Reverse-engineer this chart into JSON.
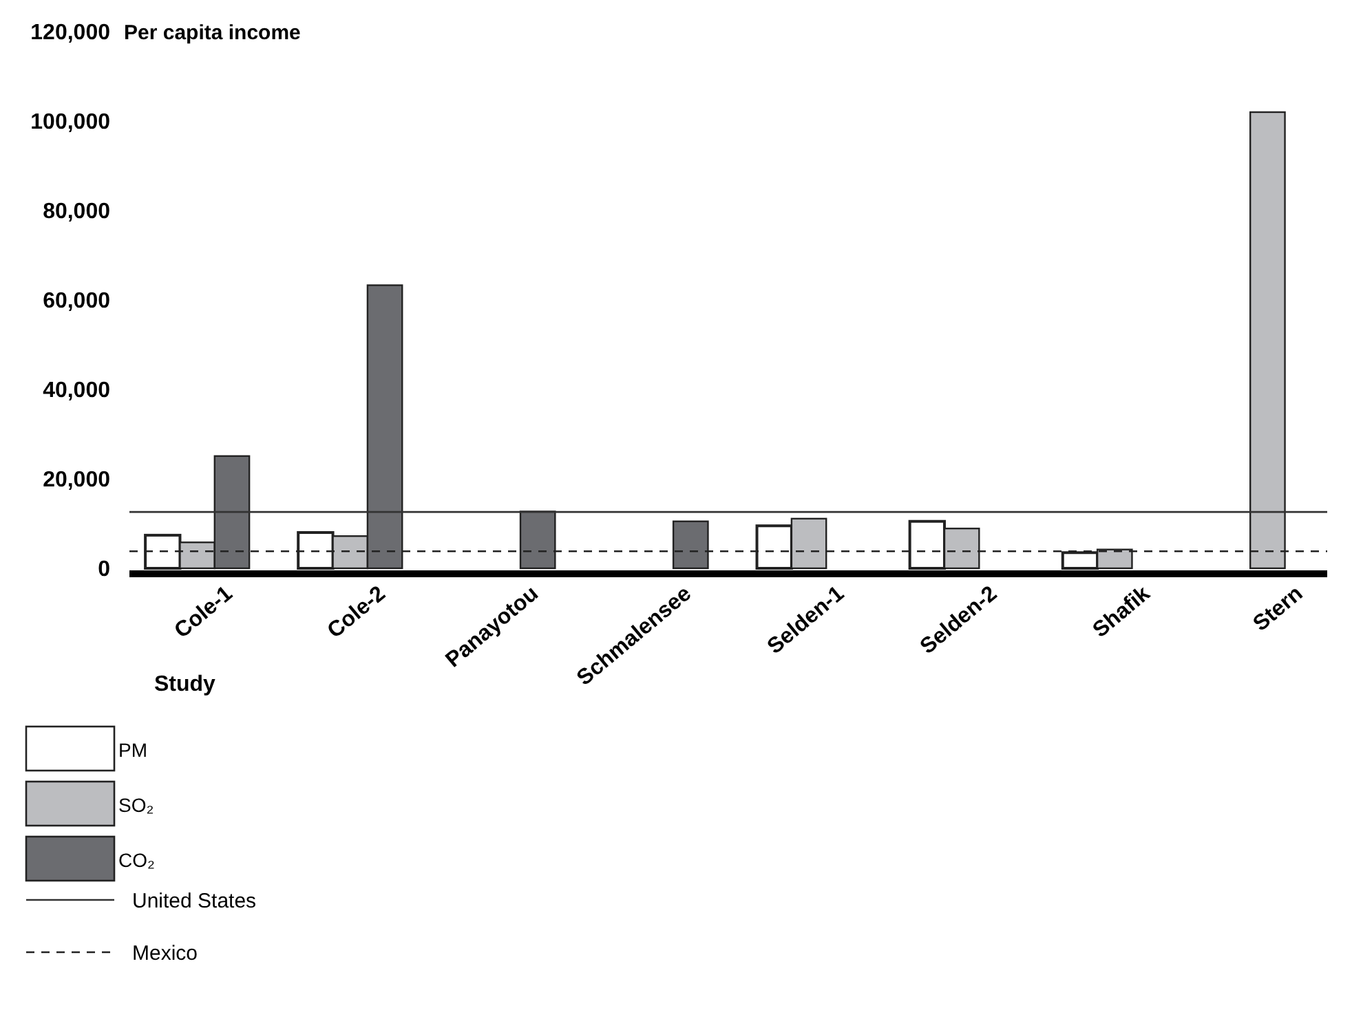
{
  "chart_data": {
    "type": "bar",
    "ylabel": "Per capita income",
    "xlabel": "Study",
    "categories": [
      "Cole-1",
      "Cole-2",
      "Panayotou",
      "Schmalensee",
      "Selden-1",
      "Selden-2",
      "Shafik",
      "Stern"
    ],
    "series": [
      {
        "name": "PM",
        "color": "#ffffff",
        "values": [
          7400,
          8000,
          null,
          null,
          9500,
          10500,
          3500,
          null
        ]
      },
      {
        "name": "SO₂",
        "color": "#bcbdc0",
        "values": [
          5800,
          7200,
          null,
          null,
          11100,
          8900,
          4200,
          102000
        ]
      },
      {
        "name": "CO₂",
        "color": "#6b6c70",
        "values": [
          25100,
          63300,
          12700,
          10500,
          null,
          null,
          null,
          null
        ]
      }
    ],
    "ylim": [
      0,
      120000
    ],
    "yticks": [
      {
        "value": 0,
        "label": "0"
      },
      {
        "value": 20000,
        "label": "20,000"
      },
      {
        "value": 40000,
        "label": "40,000"
      },
      {
        "value": 60000,
        "label": "60,000"
      },
      {
        "value": 80000,
        "label": "80,000"
      },
      {
        "value": 100000,
        "label": "100,000"
      },
      {
        "value": 120000,
        "label": "120,000"
      }
    ],
    "ref_lines": [
      {
        "axis": "y",
        "value": 12600,
        "label": "United States",
        "color": "#333333",
        "line_style": "solid"
      },
      {
        "axis": "y",
        "value": 3800,
        "label": "Mexico",
        "color": "#222222",
        "line_style": "dashed"
      }
    ],
    "grid": false,
    "legend": "bottom left"
  }
}
